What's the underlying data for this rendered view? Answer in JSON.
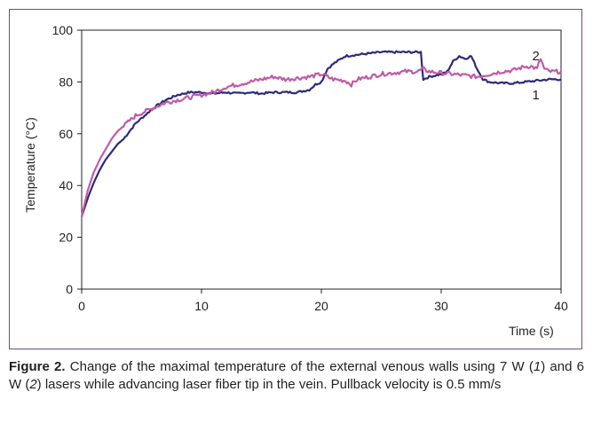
{
  "chart_data": {
    "type": "line",
    "xlabel": "Time (s)",
    "ylabel": "Temperature (°C)",
    "xlim": [
      0,
      40
    ],
    "ylim": [
      0,
      100
    ],
    "x_ticks": [
      "0",
      "10",
      "20",
      "30",
      "40"
    ],
    "y_ticks": [
      "0",
      "20",
      "40",
      "60",
      "80",
      "100"
    ],
    "grid": false,
    "series": [
      {
        "name": "1",
        "color": "#2e2a7a",
        "x": [
          0,
          0.5,
          1,
          1.5,
          2,
          2.5,
          3,
          3.5,
          4,
          4.5,
          5,
          6,
          7,
          8,
          9,
          10,
          11,
          12,
          13,
          14,
          15,
          16,
          17,
          18,
          19,
          19.5,
          20,
          20.5,
          21,
          21.5,
          22,
          23,
          24,
          25,
          26,
          27,
          28,
          28.3,
          28.5,
          29,
          30,
          30.5,
          31,
          31.5,
          32,
          32.5,
          33,
          33.5,
          34,
          35,
          36,
          37,
          38,
          39,
          40
        ],
        "y": [
          28,
          35,
          41,
          46,
          50,
          53,
          56,
          58,
          61,
          64,
          66,
          70,
          73,
          75,
          76,
          76,
          75.5,
          76,
          75.5,
          76,
          75.5,
          76,
          76,
          76,
          77,
          79,
          80,
          85,
          87,
          88.5,
          90,
          90.5,
          91,
          91.5,
          91.5,
          91.5,
          91.5,
          91.5,
          81,
          82,
          83,
          84,
          88,
          90,
          89,
          90,
          85,
          81,
          80,
          79.5,
          79.5,
          80,
          80.5,
          81,
          81
        ]
      },
      {
        "name": "2",
        "color": "#c05aa8",
        "x": [
          0,
          0.5,
          1,
          1.5,
          2,
          2.5,
          3,
          3.5,
          4,
          4.5,
          5,
          6,
          7,
          8,
          9,
          10,
          11,
          12,
          13,
          14,
          15,
          16,
          17,
          18,
          19,
          20,
          20.5,
          21,
          22,
          22.5,
          23,
          24,
          25,
          26,
          27,
          28,
          28.5,
          29,
          30,
          31,
          32,
          33,
          34,
          35,
          36,
          37,
          37.5,
          38,
          38.3,
          38.6,
          39,
          40
        ],
        "y": [
          28,
          38,
          45,
          50,
          54,
          58,
          61,
          63,
          65,
          67,
          68,
          70,
          72,
          73,
          74,
          75,
          76,
          78,
          79,
          80,
          81,
          82,
          81,
          81.5,
          82,
          83,
          82,
          81,
          80.5,
          79,
          81,
          82,
          83,
          83.5,
          84,
          84,
          85,
          84,
          83.5,
          83,
          82.5,
          82,
          83,
          84,
          84.5,
          86,
          86,
          85,
          89,
          85,
          84,
          84
        ]
      }
    ],
    "annotations": [
      {
        "text": "2",
        "x": 37,
        "y": 90
      },
      {
        "text": "1",
        "x": 37,
        "y": 75
      }
    ]
  },
  "caption": {
    "label": "Figure 2.",
    "text_1": " Change of the maximal temperature of the external venous walls using 7 W (",
    "italic_1": "1",
    "text_2": ") and 6 W (",
    "italic_2": "2",
    "text_3": ") lasers while advancing laser fiber tip in the vein. Pullback velocity is 0.5 mm/s"
  }
}
